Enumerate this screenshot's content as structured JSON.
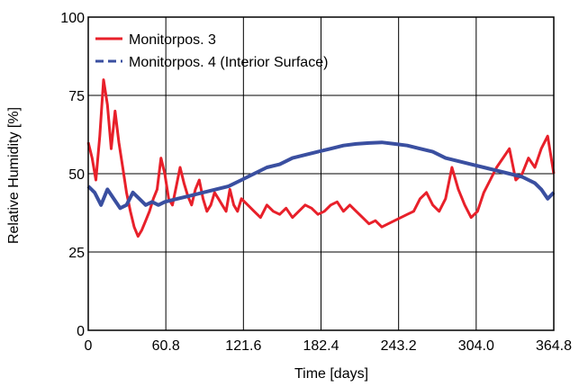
{
  "chart_data": {
    "type": "line",
    "title": "",
    "xlabel": "Time [days]",
    "ylabel": "Relative Humidity [%]",
    "xlim": [
      0,
      364.8
    ],
    "ylim": [
      0,
      100
    ],
    "x_ticks": [
      0,
      60.8,
      121.6,
      182.4,
      243.2,
      304.0,
      364.8
    ],
    "x_tick_labels": [
      "0",
      "60.8",
      "121.6",
      "182.4",
      "243.2",
      "304.0",
      "364.8"
    ],
    "y_ticks": [
      0,
      25,
      50,
      75,
      100
    ],
    "y_tick_labels": [
      "0",
      "25",
      "50",
      "75",
      "100"
    ],
    "grid": true,
    "legend_position": "top-left",
    "colors": {
      "series_3": "#e8202a",
      "series_4": "#3a4fa0"
    },
    "series": [
      {
        "name": "Monitorpos. 3",
        "style": "solid",
        "x": [
          0,
          3,
          6,
          9,
          12,
          15,
          18,
          21,
          24,
          27,
          30,
          33,
          36,
          39,
          42,
          45,
          48,
          51,
          54,
          57,
          60,
          63,
          66,
          69,
          72,
          75,
          78,
          81,
          84,
          87,
          90,
          93,
          96,
          99,
          102,
          105,
          108,
          111,
          114,
          117,
          120,
          125,
          130,
          135,
          140,
          145,
          150,
          155,
          160,
          165,
          170,
          175,
          180,
          185,
          190,
          195,
          200,
          205,
          210,
          215,
          220,
          225,
          230,
          235,
          240,
          245,
          250,
          255,
          260,
          265,
          270,
          275,
          280,
          285,
          290,
          295,
          300,
          305,
          310,
          315,
          320,
          325,
          330,
          335,
          340,
          345,
          350,
          355,
          360,
          364.8
        ],
        "y": [
          60,
          55,
          48,
          62,
          80,
          72,
          58,
          70,
          60,
          52,
          44,
          38,
          33,
          30,
          32,
          35,
          38,
          42,
          45,
          55,
          50,
          42,
          40,
          46,
          52,
          47,
          43,
          40,
          45,
          48,
          42,
          38,
          40,
          44,
          42,
          40,
          38,
          45,
          40,
          38,
          42,
          40,
          38,
          36,
          40,
          38,
          37,
          39,
          36,
          38,
          40,
          39,
          37,
          38,
          40,
          41,
          38,
          40,
          38,
          36,
          34,
          35,
          33,
          34,
          35,
          36,
          37,
          38,
          42,
          44,
          40,
          38,
          42,
          52,
          45,
          40,
          36,
          38,
          44,
          48,
          52,
          55,
          58,
          48,
          50,
          55,
          52,
          58,
          62,
          50
        ]
      },
      {
        "name": "Monitorpos. 4 (Interior Surface)",
        "style": "dashed",
        "x": [
          0,
          5,
          10,
          15,
          20,
          25,
          30,
          35,
          40,
          45,
          50,
          55,
          60,
          70,
          80,
          90,
          100,
          110,
          120,
          130,
          140,
          150,
          160,
          170,
          180,
          190,
          200,
          210,
          220,
          230,
          240,
          250,
          260,
          270,
          280,
          290,
          300,
          310,
          320,
          330,
          340,
          350,
          355,
          360,
          364.8
        ],
        "y": [
          46,
          44,
          40,
          45,
          42,
          39,
          40,
          44,
          42,
          40,
          41,
          40,
          41,
          42,
          43,
          44,
          45,
          46,
          48,
          50,
          52,
          53,
          55,
          56,
          57,
          58,
          59,
          59.5,
          59.8,
          60,
          59.5,
          59,
          58,
          57,
          55,
          54,
          53,
          52,
          51,
          50,
          49,
          47,
          45,
          42,
          44
        ]
      }
    ]
  }
}
